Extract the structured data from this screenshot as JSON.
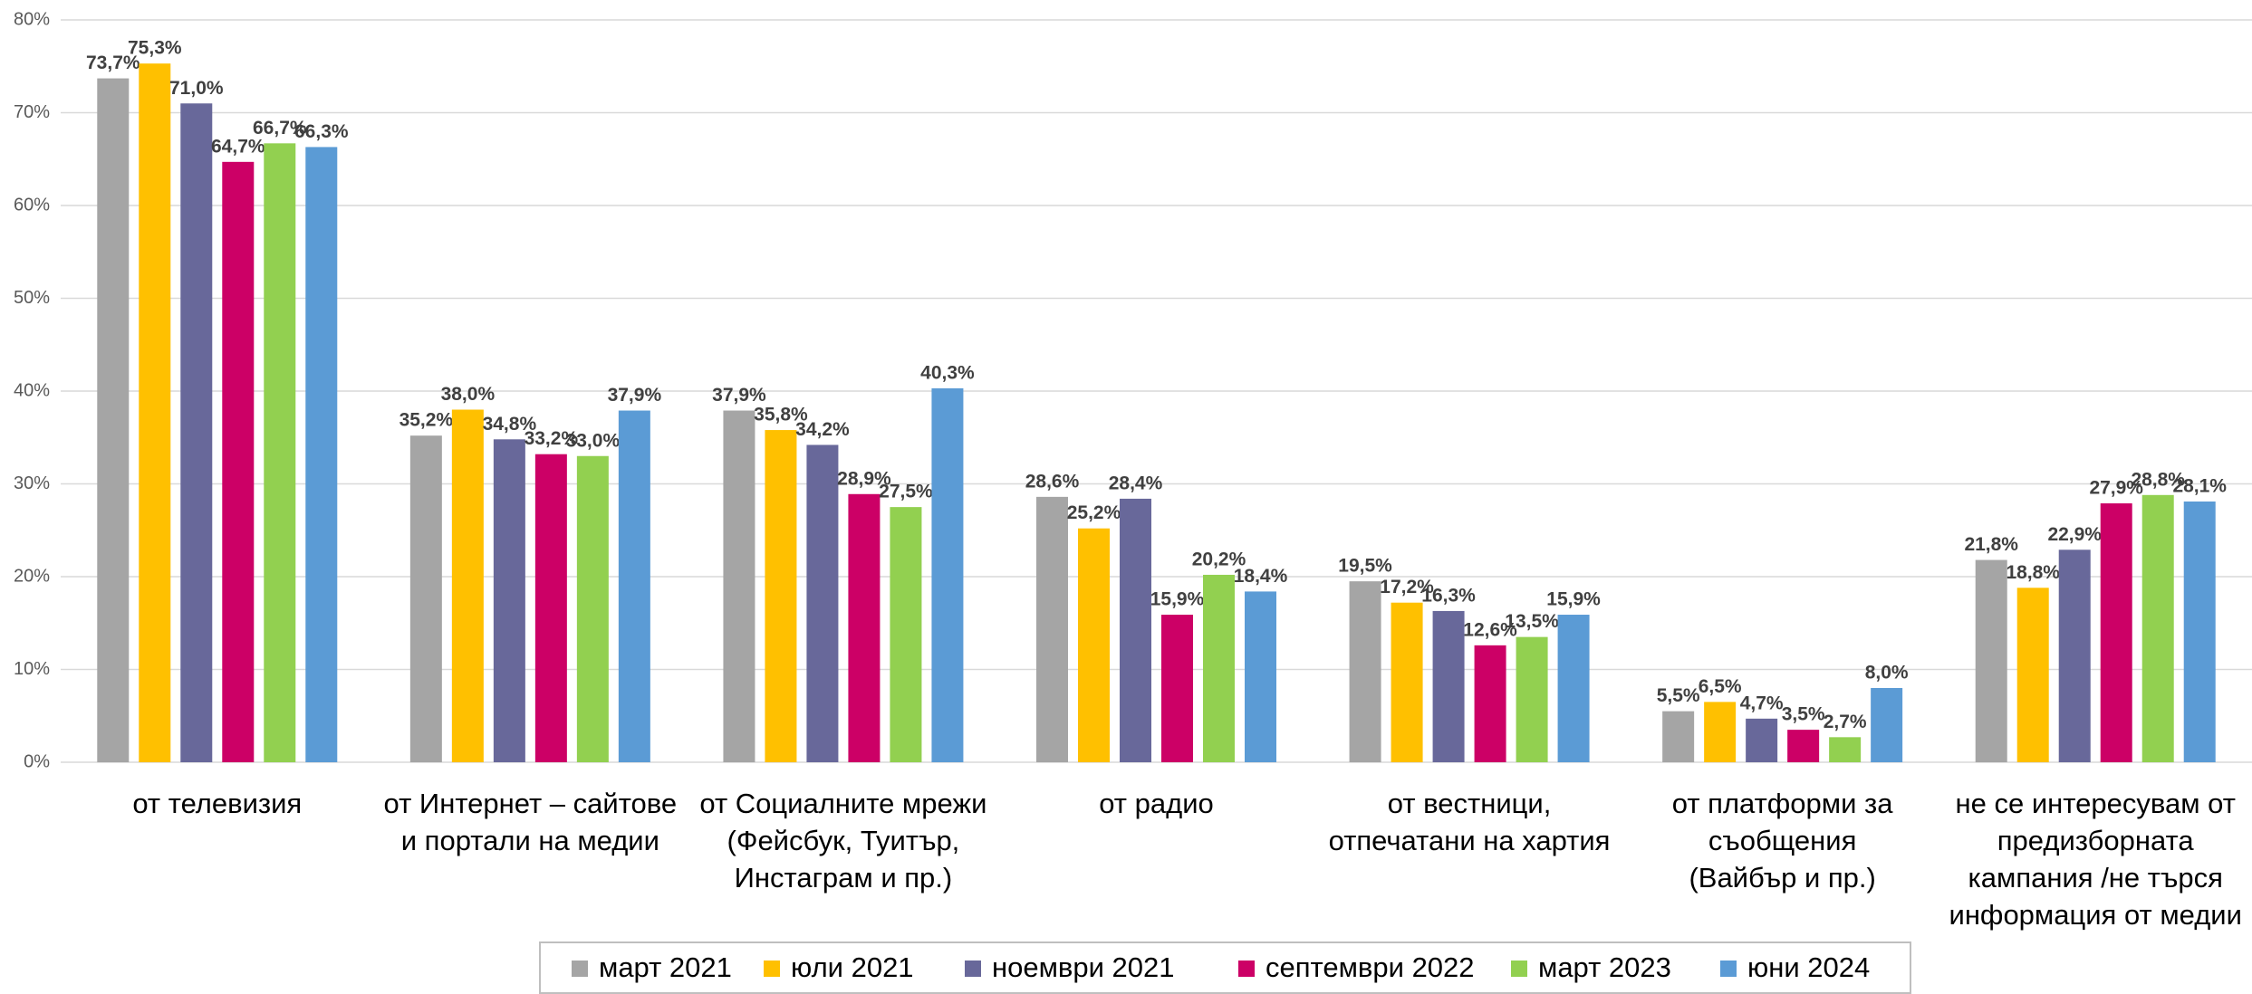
{
  "chart_data": {
    "type": "bar",
    "categories": [
      [
        "от телевизия"
      ],
      [
        "от Интернет – сайтове",
        "и портали на медии"
      ],
      [
        "от Социалните мрежи",
        "(Фейсбук, Туитър,",
        "Инстаграм и пр.)"
      ],
      [
        "от радио"
      ],
      [
        "от вестници,",
        "отпечатани на хартия"
      ],
      [
        "от платформи за",
        "съобщения",
        "(Вайбър и пр.)"
      ],
      [
        "не се интересувам от",
        "предизборната",
        "кампания /не търся",
        "информация от медии"
      ]
    ],
    "series": [
      {
        "name": "март 2021",
        "color": "#a5a5a5",
        "values": [
          73.7,
          35.2,
          37.9,
          28.6,
          19.5,
          5.5,
          21.8
        ],
        "value_labels": [
          "73,7%",
          "35,2%",
          "37,9%",
          "28,6%",
          "19,5%",
          "5,5%",
          "21,8%"
        ]
      },
      {
        "name": "юли 2021",
        "color": "#ffc000",
        "values": [
          75.3,
          38.0,
          35.8,
          25.2,
          17.2,
          6.5,
          18.8
        ],
        "value_labels": [
          "75,3%",
          "38,0%",
          "35,8%",
          "25,2%",
          "17,2%",
          "6,5%",
          "18,8%"
        ]
      },
      {
        "name": "ноември 2021",
        "color": "#68689a",
        "values": [
          71.0,
          34.8,
          34.2,
          28.4,
          16.3,
          4.7,
          22.9
        ],
        "value_labels": [
          "71,0%",
          "34,8%",
          "34,2%",
          "28,4%",
          "16,3%",
          "4,7%",
          "22,9%"
        ]
      },
      {
        "name": "септември 2022",
        "color": "#cc0066",
        "values": [
          64.7,
          33.2,
          28.9,
          15.9,
          12.6,
          3.5,
          27.9
        ],
        "value_labels": [
          "64,7%",
          "33,2%",
          "28,9%",
          "15,9%",
          "12,6%",
          "3,5%",
          "27,9%"
        ]
      },
      {
        "name": "март 2023",
        "color": "#92d050",
        "values": [
          66.7,
          33.0,
          27.5,
          20.2,
          13.5,
          2.7,
          28.8
        ],
        "value_labels": [
          "66,7%",
          "33,0%",
          "27,5%",
          "20,2%",
          "13,5%",
          "2,7%",
          "28,8%"
        ]
      },
      {
        "name": "юни 2024",
        "color": "#5b9bd5",
        "values": [
          66.3,
          37.9,
          40.3,
          18.4,
          15.9,
          8.0,
          28.1
        ],
        "value_labels": [
          "66,3%",
          "37,9%",
          "40,3%",
          "18,4%",
          "15,9%",
          "8,0%",
          "28,1%"
        ]
      }
    ],
    "ylim": [
      0,
      80
    ],
    "yticks": [
      {
        "value": 0,
        "label": "0%"
      },
      {
        "value": 10,
        "label": "10%"
      },
      {
        "value": 20,
        "label": "20%"
      },
      {
        "value": 30,
        "label": "30%"
      },
      {
        "value": 40,
        "label": "40%"
      },
      {
        "value": 50,
        "label": "50%"
      },
      {
        "value": 60,
        "label": "60%"
      },
      {
        "value": 70,
        "label": "70%"
      },
      {
        "value": 80,
        "label": "80%"
      }
    ],
    "grid": true,
    "legend": "bottom"
  }
}
